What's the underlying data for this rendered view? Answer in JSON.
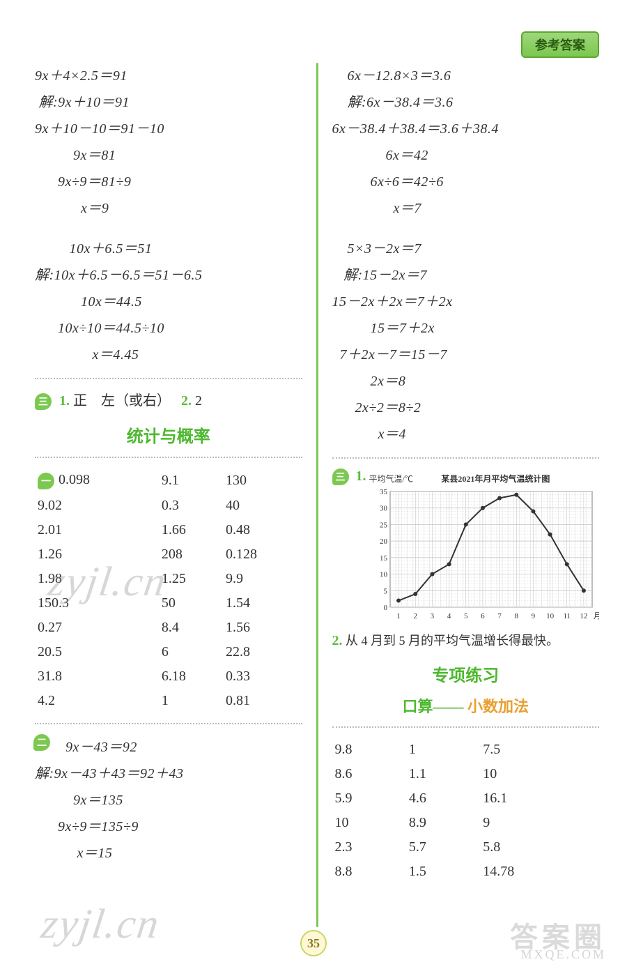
{
  "header": {
    "tab_label": "参考答案"
  },
  "page_number": "35",
  "watermark": "zyjl.cn",
  "corner": {
    "main": "答案圈",
    "sub": "MXQE.COM"
  },
  "left": {
    "eq_group_1": [
      "9x＋4×2.5＝91",
      " 解:9x＋10＝91",
      "9x＋10－10＝91－10",
      "          9x＝81",
      "      9x÷9＝81÷9",
      "            x＝9"
    ],
    "eq_group_2": [
      "         10x＋6.5＝51",
      "解:10x＋6.5－6.5＝51－6.5",
      "            10x＝44.5",
      "      10x÷10＝44.5÷10",
      "               x＝4.45"
    ],
    "bullet_three": "三",
    "q1_label": "1.",
    "q1_text": "正　左（或右）",
    "q2_label": "2.",
    "q2_text": "2",
    "section_title": "统计与概率",
    "bullet_one": "一",
    "table1": [
      [
        "0.098",
        "9.1",
        "130"
      ],
      [
        "9.02",
        "0.3",
        "40"
      ],
      [
        "2.01",
        "1.66",
        "0.48"
      ],
      [
        "1.26",
        "208",
        "0.128"
      ],
      [
        "1.98",
        "1.25",
        "9.9"
      ],
      [
        "150.3",
        "50",
        "1.54"
      ],
      [
        "0.27",
        "8.4",
        "1.56"
      ],
      [
        "20.5",
        "6",
        "22.8"
      ],
      [
        "31.8",
        "6.18",
        "0.33"
      ],
      [
        "4.2",
        "1",
        "0.81"
      ]
    ],
    "bullet_two": "二",
    "eq_group_3": [
      "        9x－43＝92",
      "解:9x－43＋43＝92＋43",
      "          9x＝135",
      "      9x÷9＝135÷9",
      "           x＝15"
    ]
  },
  "right": {
    "eq_group_1": [
      "    6x－12.8×3＝3.6",
      "    解:6x－38.4＝3.6",
      "6x－38.4＋38.4＝3.6＋38.4",
      "              6x＝42",
      "          6x÷6＝42÷6",
      "                x＝7"
    ],
    "eq_group_2": [
      "    5×3－2x＝7",
      "   解:15－2x＝7",
      "15－2x＋2x＝7＋2x",
      "          15＝7＋2x",
      "  7＋2x－7＝15－7",
      "          2x＝8",
      "      2x÷2＝8÷2",
      "            x＝4"
    ],
    "bullet_three": "三",
    "q1_label": "1.",
    "chart": {
      "title": "某县2021年月平均气温统计图",
      "ylabel": "平均气温/℃",
      "xlabel": "月份",
      "ylim": [
        0,
        35
      ],
      "ytick_step": 5,
      "xvalues": [
        1,
        2,
        3,
        4,
        5,
        6,
        7,
        8,
        9,
        10,
        11,
        12
      ],
      "yvalues": [
        2,
        4,
        10,
        13,
        25,
        30,
        33,
        34,
        29,
        22,
        13,
        5
      ],
      "line_color": "#333333",
      "grid_color": "#bfbfbf",
      "background_color": "#ffffff",
      "label_fontsize": 11
    },
    "q2_label": "2.",
    "q2_text": "从 4 月到 5 月的平均气温增长得最快。",
    "section_title": "专项练习",
    "subsection_g": "口算——",
    "subsection_o": " 小数加法",
    "table2": [
      [
        "9.8",
        "1",
        "7.5"
      ],
      [
        "8.6",
        "1.1",
        "10"
      ],
      [
        "5.9",
        "4.6",
        "16.1"
      ],
      [
        "10",
        "8.9",
        "9"
      ],
      [
        "2.3",
        "5.7",
        "5.8"
      ],
      [
        "8.8",
        "1.5",
        "14.78"
      ]
    ]
  }
}
